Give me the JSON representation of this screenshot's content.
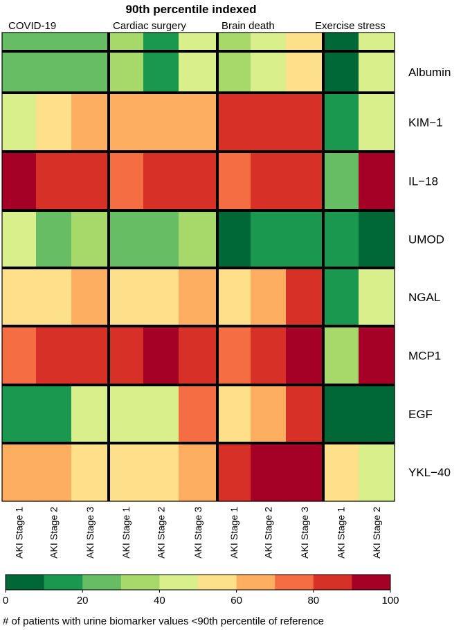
{
  "chart_data": {
    "type": "heatmap",
    "title": "90th percentile indexed",
    "groups": [
      {
        "name": "COVID-19",
        "columns": [
          "AKI Stage 1",
          "AKI Stage 2",
          "AKI Stage 3"
        ]
      },
      {
        "name": "Cardiac surgery",
        "columns": [
          "AKI Stage 1",
          "AKI Stage 2",
          "AKI Stage 3"
        ]
      },
      {
        "name": "Brain death",
        "columns": [
          "AKI Stage 1",
          "AKI Stage 2",
          "AKI Stage 3"
        ]
      },
      {
        "name": "Exercise stress",
        "columns": [
          "AKI Stage 1",
          "AKI Stage 2"
        ]
      }
    ],
    "rows": [
      "",
      "Albumin",
      "KIM−1",
      "IL−18",
      "UMOD",
      "NGAL",
      "MCP1",
      "EGF",
      "YKL−40"
    ],
    "values": [
      [
        25,
        25,
        25,
        35,
        15,
        45,
        35,
        45,
        55,
        5,
        45
      ],
      [
        25,
        25,
        25,
        35,
        15,
        45,
        35,
        45,
        55,
        5,
        45
      ],
      [
        45,
        55,
        65,
        65,
        65,
        65,
        85,
        85,
        85,
        15,
        45
      ],
      [
        95,
        85,
        85,
        75,
        85,
        85,
        75,
        85,
        85,
        25,
        95
      ],
      [
        45,
        25,
        35,
        25,
        25,
        35,
        5,
        15,
        15,
        15,
        5
      ],
      [
        55,
        55,
        65,
        55,
        55,
        65,
        55,
        65,
        85,
        15,
        45
      ],
      [
        75,
        85,
        85,
        85,
        95,
        85,
        75,
        85,
        95,
        35,
        95
      ],
      [
        15,
        15,
        45,
        45,
        45,
        75,
        55,
        65,
        85,
        5,
        5
      ],
      [
        65,
        65,
        55,
        55,
        55,
        65,
        85,
        95,
        95,
        55,
        45
      ]
    ],
    "color_scale": {
      "min": 0,
      "max": 100,
      "step": 10,
      "colors": [
        "#006837",
        "#1A9850",
        "#66BD63",
        "#A6D96A",
        "#D9EF8B",
        "#FEE08B",
        "#FDAE61",
        "#F46D43",
        "#D73027",
        "#A50026"
      ],
      "ticks": [
        "0",
        "20",
        "40",
        "60",
        "80",
        "100"
      ],
      "title": "# of patients with urine biomarker values <90th percentile of reference"
    }
  }
}
